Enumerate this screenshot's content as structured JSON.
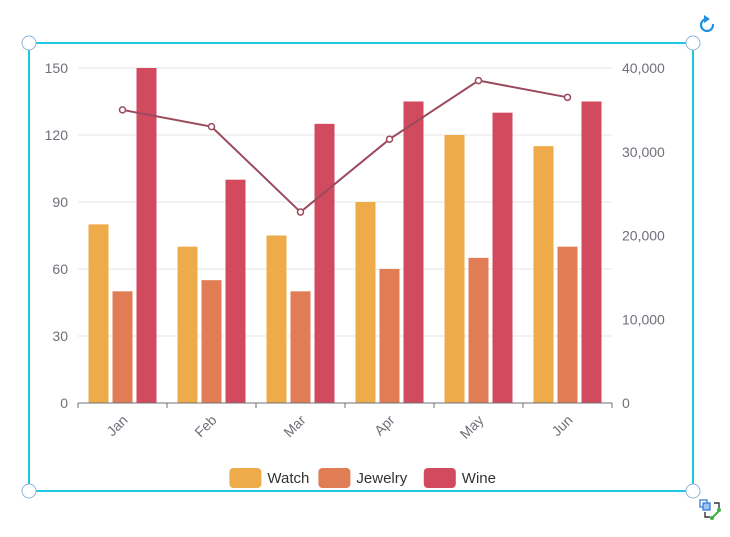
{
  "colors": {
    "selection": "#1EC8E1",
    "handle_stroke": "#8FB3D9",
    "rotate_icon": "#1E90E0",
    "grid": "#e6e6e6",
    "axis": "#6e7079",
    "line": "#9B4A5E"
  },
  "icons": {
    "rotate": "rotate-icon",
    "transform": "transform-icon"
  },
  "chart_data": {
    "type": "bar",
    "categories": [
      "Jan",
      "Feb",
      "Mar",
      "Apr",
      "May",
      "Jun"
    ],
    "series": [
      {
        "name": "Watch",
        "type": "bar",
        "axis": "left",
        "color": "#EEAB4A",
        "values": [
          80,
          70,
          75,
          90,
          120,
          115
        ]
      },
      {
        "name": "Jewelry",
        "type": "bar",
        "axis": "left",
        "color": "#E07D55",
        "values": [
          50,
          55,
          50,
          60,
          65,
          70
        ]
      },
      {
        "name": "Wine",
        "type": "bar",
        "axis": "left",
        "color": "#D14A5E",
        "values": [
          150,
          100,
          125,
          135,
          130,
          135
        ]
      },
      {
        "type": "line",
        "axis": "right",
        "color": "#9B4A5E",
        "values": [
          35000,
          33000,
          22800,
          31500,
          38500,
          36500
        ]
      }
    ],
    "y_left": {
      "min": 0,
      "max": 150,
      "ticks": [
        "0",
        "30",
        "60",
        "90",
        "120",
        "150"
      ]
    },
    "y_right": {
      "min": 0,
      "max": 40000,
      "ticks": [
        "0",
        "10,000",
        "20,000",
        "30,000",
        "40,000"
      ]
    },
    "legend": {
      "position": "bottom",
      "items": [
        "Watch",
        "Jewelry",
        "Wine"
      ]
    },
    "grid": true,
    "x_label_rotation": -45
  }
}
